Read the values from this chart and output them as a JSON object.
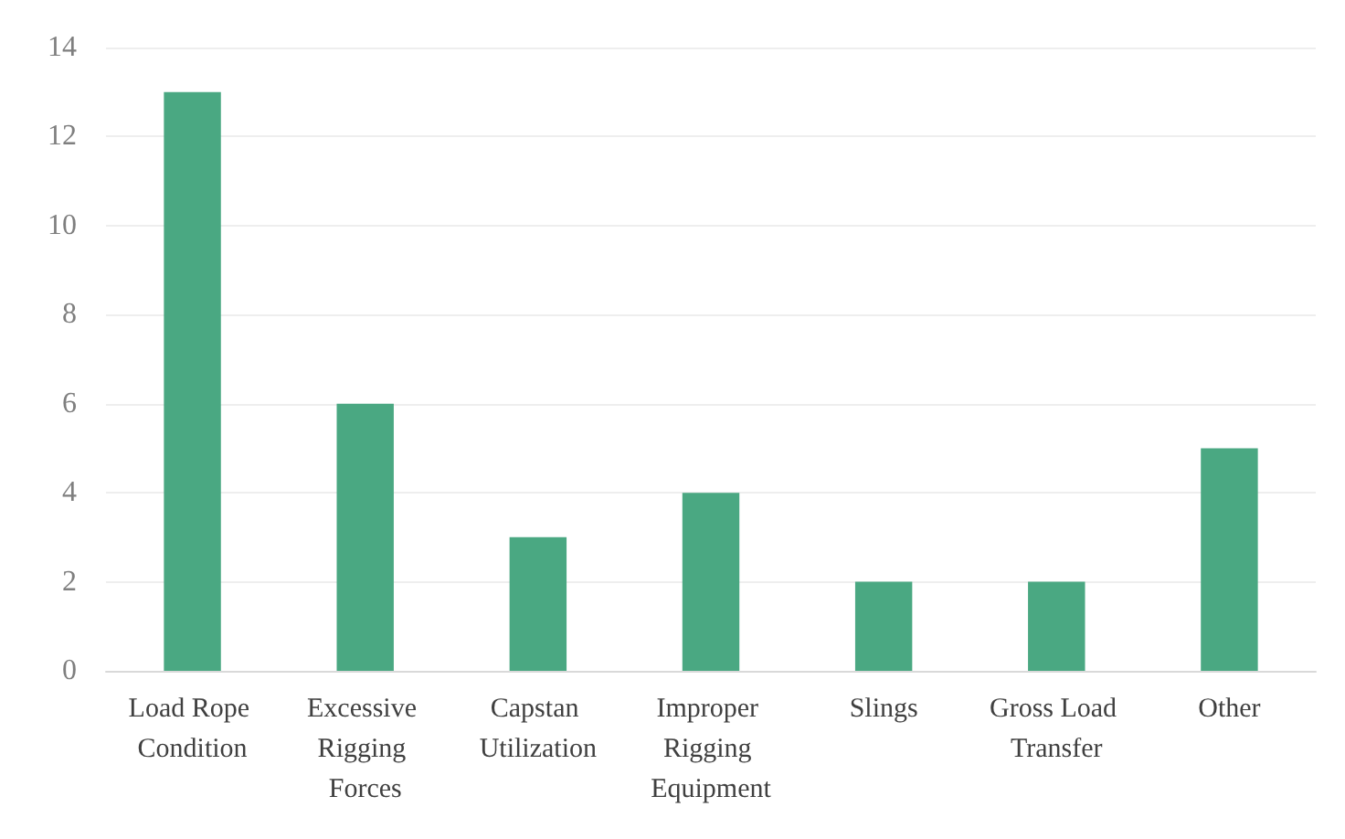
{
  "chart_data": {
    "type": "bar",
    "categories": [
      "Load Rope Condition",
      "Excessive Rigging Forces",
      "Capstan Utilization",
      "Improper Rigging Equipment",
      "Slings",
      "Gross Load Transfer",
      "Other"
    ],
    "values": [
      13,
      6,
      3,
      4,
      2,
      2,
      5
    ],
    "color": "#4aa882",
    "ylim": [
      0,
      14
    ],
    "yticks": [
      0,
      2,
      4,
      6,
      8,
      10,
      12,
      14
    ],
    "grid": "y"
  }
}
